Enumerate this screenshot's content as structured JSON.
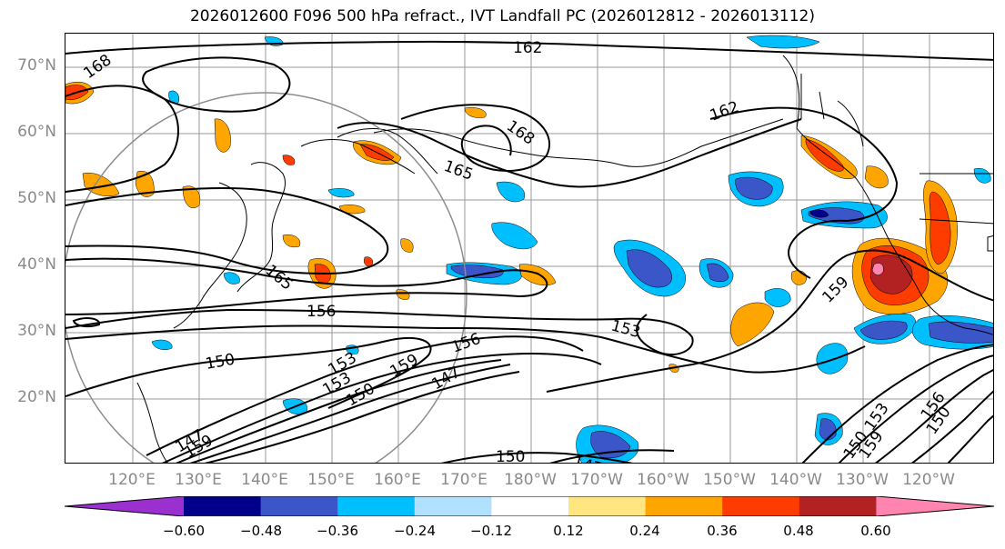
{
  "title": "2026012600 F096 500 hPa refract., IVT Landfall PC (2026012812 - 2026013112)",
  "latitude_labels": [
    "70°N",
    "60°N",
    "50°N",
    "40°N",
    "30°N",
    "20°N"
  ],
  "longitude_labels": [
    "120°E",
    "130°E",
    "140°E",
    "150°E",
    "160°E",
    "170°E",
    "180°W",
    "170°W",
    "160°W",
    "150°W",
    "140°W",
    "130°W",
    "120°W"
  ],
  "contour_labels": [
    "168",
    "162",
    "168",
    "165",
    "162",
    "159",
    "165",
    "156",
    "153",
    "150",
    "147",
    "159",
    "153",
    "150",
    "147",
    "150",
    "159",
    "153",
    "156",
    "150",
    "156",
    "147",
    "153",
    "150",
    "159"
  ],
  "colorbar": {
    "ticks": [
      "−0.60",
      "−0.48",
      "−0.36",
      "−0.24",
      "−0.12",
      "0.12",
      "0.24",
      "0.36",
      "0.48",
      "0.60"
    ],
    "colors": [
      "#9b30d0",
      "#00008b",
      "#3a56c8",
      "#00bfff",
      "#b0e2ff",
      "#ffffff",
      "#ffe680",
      "#ffa500",
      "#ff3c00",
      "#b22222",
      "#ff85b0"
    ]
  }
}
